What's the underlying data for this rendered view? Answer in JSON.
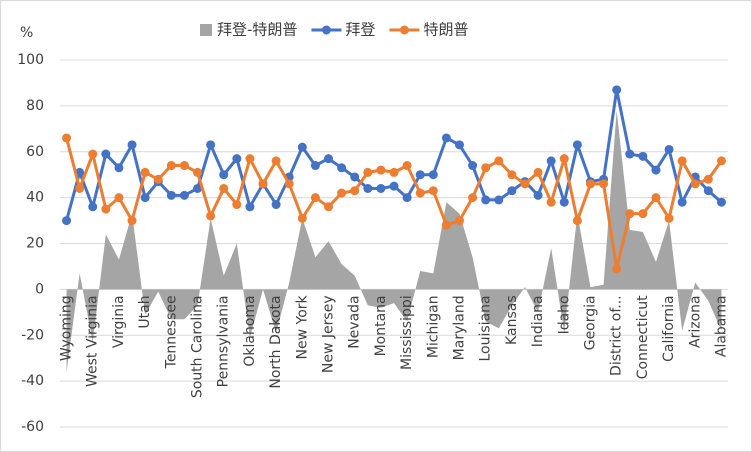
{
  "chart_data": {
    "type": "line",
    "y_unit_label": "%",
    "categories": [
      "Wyoming",
      null,
      "West Virginia",
      null,
      "Virginia",
      null,
      "Utah",
      null,
      "Tennessee",
      null,
      "South Carolina",
      null,
      "Pennsylvania",
      null,
      "Oklahoma",
      null,
      "North Dakota",
      null,
      "New York",
      null,
      "New Jersey",
      null,
      "Nevada",
      null,
      "Montana",
      null,
      "Mississippi",
      null,
      "Michigan",
      null,
      "Maryland",
      null,
      "Louisiana",
      null,
      "Kansas",
      null,
      "Indiana",
      null,
      "Idaho",
      null,
      "Georgia",
      null,
      "District of...",
      null,
      "Connecticut",
      null,
      "California",
      null,
      "Arizona",
      null,
      "Alabama"
    ],
    "series": [
      {
        "name": "拜登-特朗普",
        "kind": "area",
        "color": "#a5a5a5",
        "values": [
          -36,
          7,
          -23,
          24,
          13,
          33,
          -11,
          -1,
          -13,
          -13,
          -7,
          31,
          6,
          20,
          -21,
          0,
          -19,
          3,
          31,
          14,
          21,
          11,
          6,
          -7,
          -8,
          -6,
          -14,
          8,
          7,
          38,
          33,
          14,
          -14,
          -17,
          -7,
          1,
          -10,
          18,
          -19,
          33,
          1,
          2,
          78,
          26,
          25,
          12,
          30,
          -18,
          3,
          -5,
          -18
        ]
      },
      {
        "name": "拜登",
        "kind": "line",
        "color": "#4472c4",
        "values": [
          30,
          51,
          36,
          59,
          53,
          63,
          40,
          47,
          41,
          41,
          44,
          63,
          50,
          57,
          36,
          46,
          37,
          49,
          62,
          54,
          57,
          53,
          49,
          44,
          44,
          45,
          40,
          50,
          50,
          66,
          63,
          54,
          39,
          39,
          43,
          47,
          41,
          56,
          38,
          63,
          47,
          48,
          87,
          59,
          58,
          52,
          61,
          38,
          49,
          43,
          38
        ]
      },
      {
        "name": "特朗普",
        "kind": "line",
        "color": "#ed7d31",
        "values": [
          66,
          44,
          59,
          35,
          40,
          30,
          51,
          48,
          54,
          54,
          51,
          32,
          44,
          37,
          57,
          46,
          56,
          46,
          31,
          40,
          36,
          42,
          43,
          51,
          52,
          51,
          54,
          42,
          43,
          28,
          30,
          40,
          53,
          56,
          50,
          46,
          51,
          38,
          57,
          30,
          46,
          46,
          9,
          33,
          33,
          40,
          31,
          56,
          46,
          48,
          56
        ]
      }
    ],
    "ylim": [
      -60,
      100
    ],
    "yticks": [
      -60,
      -40,
      -20,
      0,
      20,
      40,
      60,
      80,
      100
    ],
    "grid": true,
    "legend": "top"
  }
}
